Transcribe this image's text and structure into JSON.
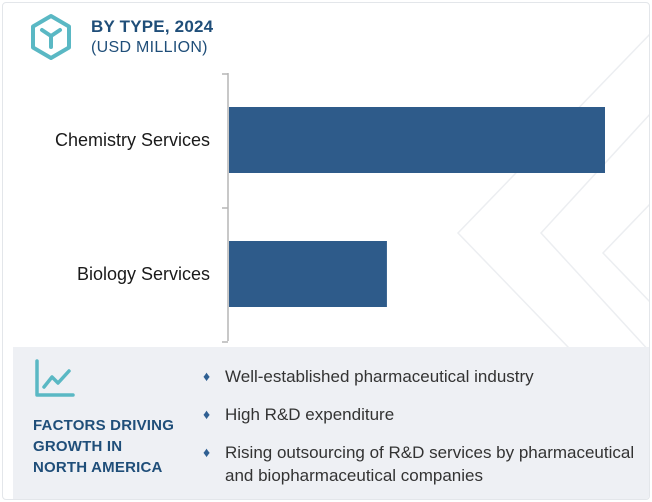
{
  "header": {
    "icon": "hexagon-logo-icon",
    "title": "BY TYPE, 2024",
    "subtitle": "(USD MILLION)"
  },
  "chart_data": {
    "type": "bar",
    "orientation": "horizontal",
    "categories": [
      "Chemistry Services",
      "Biology Services"
    ],
    "values": [
      100,
      42
    ],
    "value_units": "relative (no axis printed)",
    "grid": false,
    "legend": "none",
    "colors": {
      "bar": "#2e5b8a",
      "axis": "#b5b5b5"
    }
  },
  "factors": {
    "icon": "line-chart-icon",
    "heading_lines": [
      "FACTORS DRIVING",
      "GROWTH IN",
      "NORTH AMERICA"
    ],
    "items": [
      "Well-established pharmaceutical industry",
      "High R&D expenditure",
      "Rising outsourcing of R&D services by pharmaceutical and biopharmaceutical companies"
    ]
  },
  "colors": {
    "accent": "#1f4e79",
    "bar": "#2e5b8a",
    "panel_bg": "#eef0f4",
    "logo": "#5ab8c4"
  }
}
